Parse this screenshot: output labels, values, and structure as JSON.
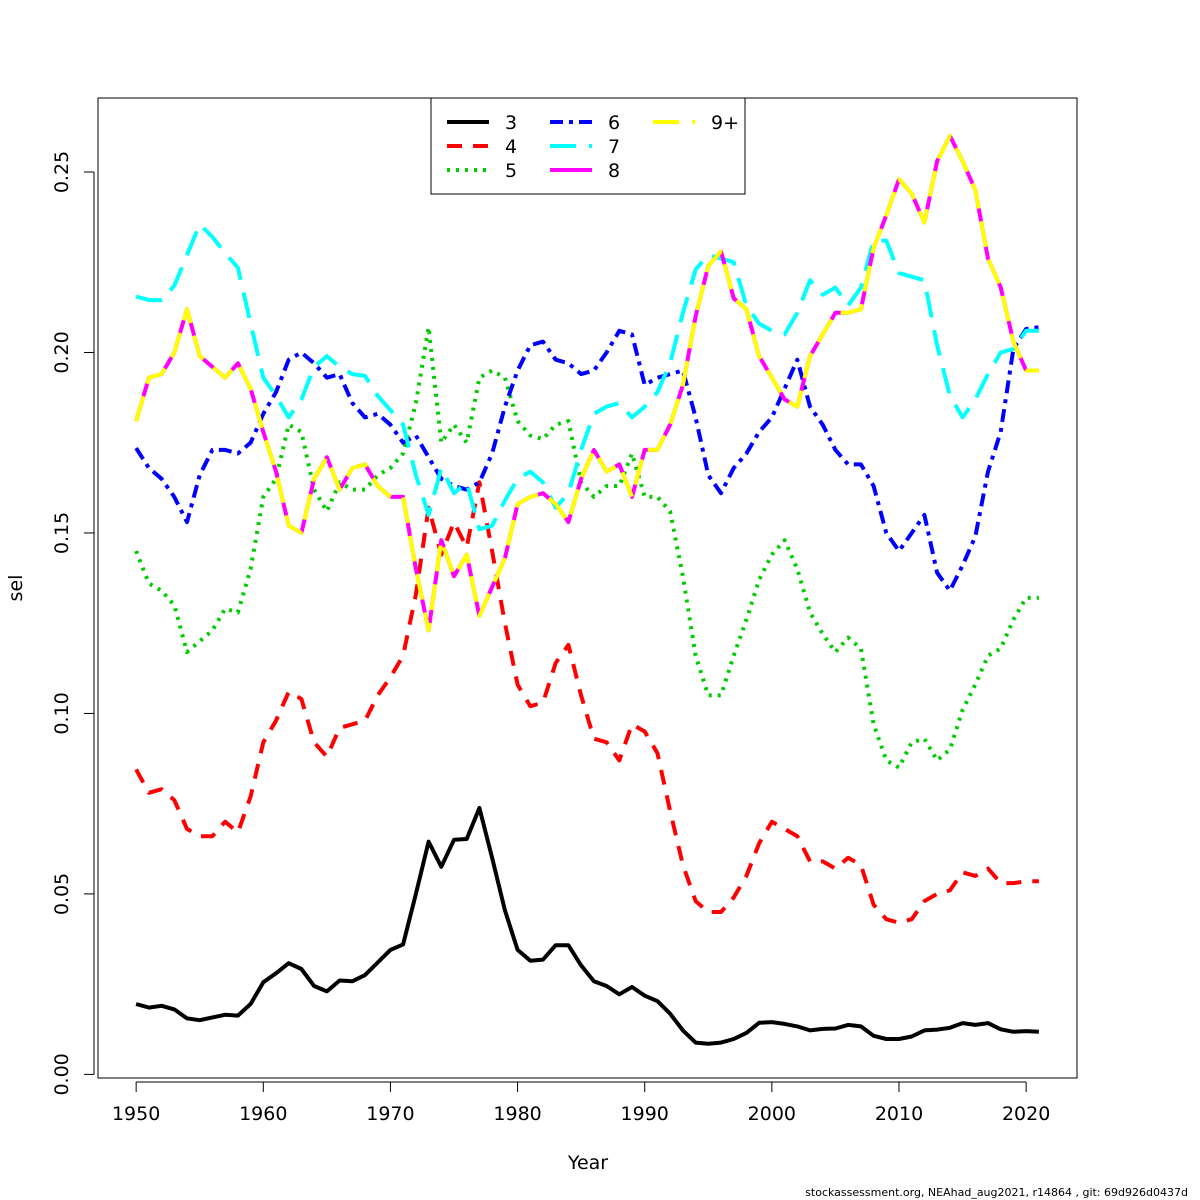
{
  "footer": "stockassessment.org, NEAhad_aug2021, r14864 , git: 69d926d0437d",
  "chart_data": {
    "type": "line",
    "title": "",
    "xlabel": "Year",
    "ylabel": "sel",
    "xlim": [
      1947,
      2024
    ],
    "ylim": [
      -0.001,
      0.2705
    ],
    "xticks": [
      1950,
      1960,
      1970,
      1980,
      1990,
      2000,
      2010,
      2020
    ],
    "yticks": [
      "0.00",
      "0.05",
      "0.10",
      "0.15",
      "0.20",
      "0.25"
    ],
    "grid": false,
    "legend_position": "top-center",
    "x": [
      1950,
      1951,
      1952,
      1953,
      1954,
      1955,
      1956,
      1957,
      1958,
      1959,
      1960,
      1961,
      1962,
      1963,
      1964,
      1965,
      1966,
      1967,
      1968,
      1969,
      1970,
      1971,
      1972,
      1973,
      1974,
      1975,
      1976,
      1977,
      1978,
      1979,
      1980,
      1981,
      1982,
      1983,
      1984,
      1985,
      1986,
      1987,
      1988,
      1989,
      1990,
      1991,
      1992,
      1993,
      1994,
      1995,
      1996,
      1997,
      1998,
      1999,
      2000,
      2001,
      2002,
      2003,
      2004,
      2005,
      2006,
      2007,
      2008,
      2009,
      2010,
      2011,
      2012,
      2013,
      2014,
      2015,
      2016,
      2017,
      2018,
      2019,
      2020,
      2021
    ],
    "series": [
      {
        "name": "3",
        "color": "#000000",
        "dash": "solid",
        "values": [
          0.0195,
          0.0185,
          0.019,
          0.018,
          0.0155,
          0.015,
          0.0158,
          0.0165,
          0.0163,
          0.0195,
          0.0255,
          0.028,
          0.0308,
          0.0292,
          0.0245,
          0.023,
          0.026,
          0.0258,
          0.0275,
          0.031,
          0.0345,
          0.036,
          0.05,
          0.0645,
          0.0575,
          0.065,
          0.0652,
          0.0738,
          0.06,
          0.0455,
          0.0345,
          0.0315,
          0.0318,
          0.0358,
          0.0358,
          0.0302,
          0.0258,
          0.0245,
          0.0222,
          0.0242,
          0.0218,
          0.0203,
          0.0168,
          0.0122,
          0.0088,
          0.0085,
          0.0088,
          0.0098,
          0.0115,
          0.0143,
          0.0145,
          0.014,
          0.0133,
          0.0122,
          0.0126,
          0.0127,
          0.0137,
          0.0133,
          0.0107,
          0.0098,
          0.0098,
          0.0105,
          0.0122,
          0.0124,
          0.0129,
          0.0142,
          0.0137,
          0.0142,
          0.0125,
          0.0118,
          0.012,
          0.0118
        ]
      },
      {
        "name": "4",
        "color": "#ff0000",
        "dash": "long",
        "values": [
          0.0845,
          0.078,
          0.079,
          0.076,
          0.068,
          0.066,
          0.066,
          0.07,
          0.067,
          0.077,
          0.092,
          0.098,
          0.106,
          0.104,
          0.092,
          0.088,
          0.096,
          0.097,
          0.098,
          0.105,
          0.11,
          0.116,
          0.133,
          0.157,
          0.144,
          0.153,
          0.146,
          0.164,
          0.145,
          0.125,
          0.108,
          0.102,
          0.103,
          0.114,
          0.119,
          0.105,
          0.093,
          0.092,
          0.087,
          0.097,
          0.095,
          0.089,
          0.073,
          0.058,
          0.048,
          0.045,
          0.045,
          0.049,
          0.055,
          0.064,
          0.07,
          0.068,
          0.066,
          0.059,
          0.059,
          0.057,
          0.06,
          0.058,
          0.047,
          0.043,
          0.042,
          0.043,
          0.048,
          0.05,
          0.051,
          0.056,
          0.055,
          0.057,
          0.053,
          0.053,
          0.0535,
          0.0535
        ]
      },
      {
        "name": "5",
        "color": "#00cd00",
        "dash": "dotted",
        "values": [
          0.145,
          0.136,
          0.134,
          0.13,
          0.117,
          0.12,
          0.123,
          0.129,
          0.128,
          0.14,
          0.16,
          0.165,
          0.18,
          0.178,
          0.162,
          0.156,
          0.164,
          0.162,
          0.162,
          0.166,
          0.168,
          0.172,
          0.186,
          0.207,
          0.175,
          0.18,
          0.175,
          0.193,
          0.195,
          0.193,
          0.181,
          0.177,
          0.176,
          0.18,
          0.181,
          0.164,
          0.16,
          0.163,
          0.163,
          0.172,
          0.16,
          0.16,
          0.156,
          0.138,
          0.116,
          0.105,
          0.105,
          0.116,
          0.126,
          0.137,
          0.144,
          0.148,
          0.14,
          0.128,
          0.122,
          0.117,
          0.121,
          0.118,
          0.097,
          0.087,
          0.085,
          0.092,
          0.093,
          0.087,
          0.09,
          0.101,
          0.108,
          0.116,
          0.118,
          0.126,
          0.132,
          0.132
        ]
      },
      {
        "name": "6",
        "color": "#0000ff",
        "dash": "dashdot",
        "values": [
          0.1735,
          0.168,
          0.165,
          0.16,
          0.153,
          0.166,
          0.173,
          0.173,
          0.172,
          0.175,
          0.183,
          0.189,
          0.198,
          0.2,
          0.197,
          0.193,
          0.194,
          0.186,
          0.182,
          0.183,
          0.18,
          0.175,
          0.177,
          0.171,
          0.165,
          0.163,
          0.162,
          0.164,
          0.172,
          0.185,
          0.195,
          0.202,
          0.203,
          0.198,
          0.197,
          0.194,
          0.195,
          0.2,
          0.206,
          0.205,
          0.191,
          0.193,
          0.194,
          0.195,
          0.182,
          0.166,
          0.161,
          0.168,
          0.172,
          0.178,
          0.182,
          0.19,
          0.198,
          0.185,
          0.18,
          0.173,
          0.169,
          0.169,
          0.163,
          0.15,
          0.145,
          0.15,
          0.155,
          0.139,
          0.134,
          0.141,
          0.149,
          0.167,
          0.178,
          0.201,
          0.2065,
          0.207
        ]
      },
      {
        "name": "7",
        "color": "#00ffff",
        "dash": "longdash",
        "values": [
          0.2155,
          0.2145,
          0.2145,
          0.2185,
          0.227,
          0.2355,
          0.232,
          0.2275,
          0.2235,
          0.208,
          0.193,
          0.188,
          0.182,
          0.187,
          0.196,
          0.199,
          0.196,
          0.194,
          0.1935,
          0.188,
          0.184,
          0.18,
          0.166,
          0.155,
          0.168,
          0.161,
          0.164,
          0.151,
          0.152,
          0.159,
          0.165,
          0.167,
          0.164,
          0.157,
          0.161,
          0.173,
          0.183,
          0.185,
          0.186,
          0.182,
          0.185,
          0.189,
          0.197,
          0.211,
          0.223,
          0.227,
          0.226,
          0.225,
          0.213,
          0.208,
          0.206,
          0.205,
          0.211,
          0.22,
          0.216,
          0.218,
          0.213,
          0.218,
          0.231,
          0.231,
          0.222,
          0.221,
          0.22,
          0.202,
          0.188,
          0.182,
          0.187,
          0.194,
          0.2,
          0.201,
          0.206,
          0.206
        ]
      },
      {
        "name": "8",
        "color": "#ff00ff",
        "dash": "solid",
        "values": [
          0.181,
          0.193,
          0.194,
          0.2,
          0.212,
          0.199,
          0.196,
          0.193,
          0.197,
          0.19,
          0.178,
          0.167,
          0.152,
          0.15,
          0.165,
          0.171,
          0.162,
          0.168,
          0.169,
          0.163,
          0.16,
          0.16,
          0.14,
          0.123,
          0.148,
          0.138,
          0.144,
          0.127,
          0.135,
          0.143,
          0.158,
          0.16,
          0.161,
          0.158,
          0.153,
          0.165,
          0.173,
          0.167,
          0.169,
          0.16,
          0.173,
          0.173,
          0.18,
          0.191,
          0.21,
          0.224,
          0.228,
          0.215,
          0.212,
          0.199,
          0.193,
          0.187,
          0.185,
          0.199,
          0.205,
          0.211,
          0.211,
          0.212,
          0.229,
          0.238,
          0.248,
          0.244,
          0.236,
          0.253,
          0.26,
          0.253,
          0.245,
          0.226,
          0.218,
          0.203,
          0.195,
          0.195
        ]
      },
      {
        "name": "9+",
        "color": "#ffff00",
        "dash": "longdash",
        "values": [
          0.181,
          0.193,
          0.194,
          0.2,
          0.212,
          0.199,
          0.196,
          0.193,
          0.197,
          0.19,
          0.178,
          0.167,
          0.152,
          0.15,
          0.165,
          0.171,
          0.162,
          0.168,
          0.169,
          0.163,
          0.16,
          0.16,
          0.14,
          0.123,
          0.148,
          0.138,
          0.144,
          0.127,
          0.135,
          0.143,
          0.158,
          0.16,
          0.161,
          0.158,
          0.153,
          0.165,
          0.173,
          0.167,
          0.169,
          0.16,
          0.173,
          0.173,
          0.18,
          0.191,
          0.21,
          0.224,
          0.228,
          0.215,
          0.212,
          0.199,
          0.193,
          0.187,
          0.185,
          0.199,
          0.205,
          0.211,
          0.211,
          0.212,
          0.229,
          0.238,
          0.248,
          0.244,
          0.236,
          0.253,
          0.26,
          0.253,
          0.245,
          0.226,
          0.218,
          0.203,
          0.195,
          0.195
        ]
      }
    ]
  }
}
